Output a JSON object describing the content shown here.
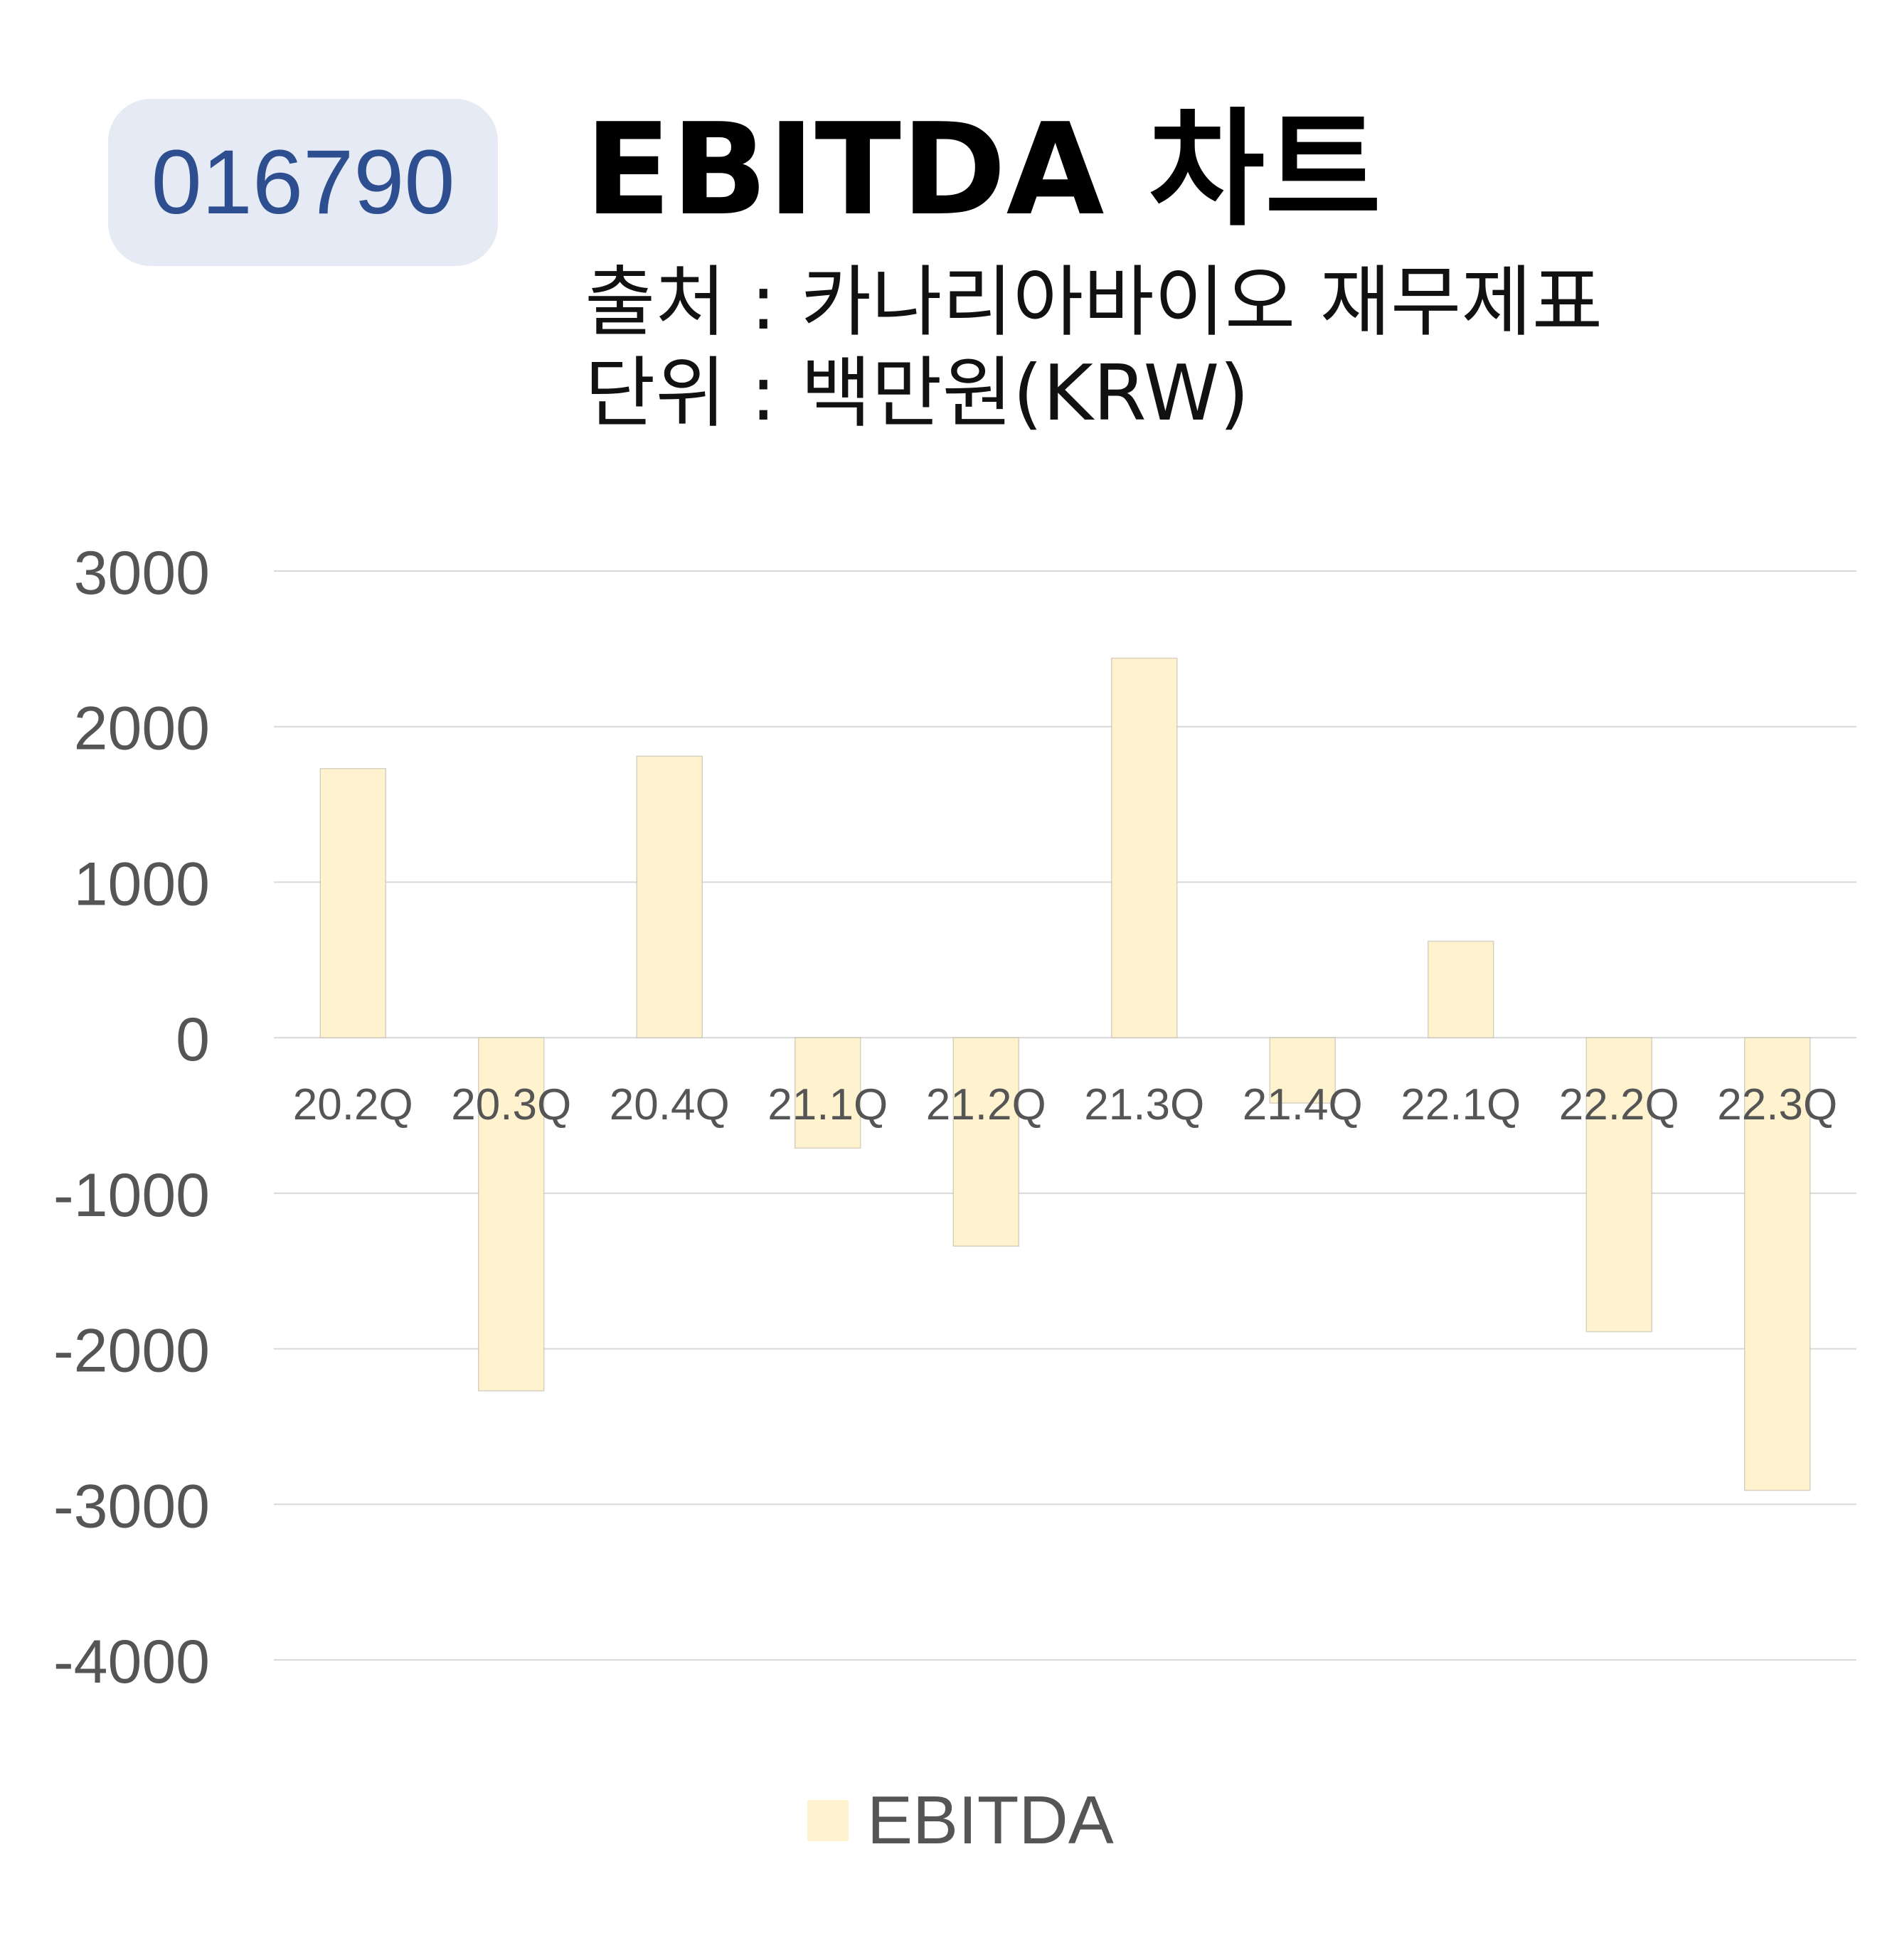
{
  "header": {
    "stock_code": "016790",
    "title": "EBITDA 차트",
    "source": "출처 : 카나리아바이오 재무제표",
    "unit": "단위 : 백만원(KRW)"
  },
  "colors": {
    "bar": "#fff2cf",
    "badge_bg": "#e5eaf5",
    "badge_text": "#2d4f8f",
    "grid": "#d9d9d9",
    "tick_text": "#555555"
  },
  "chart_data": {
    "type": "bar",
    "categories": [
      "20.2Q",
      "20.3Q",
      "20.4Q",
      "21.1Q",
      "21.2Q",
      "21.3Q",
      "21.4Q",
      "22.1Q",
      "22.2Q",
      "22.3Q"
    ],
    "series": [
      {
        "name": "EBITDA",
        "values": [
          1730,
          -2270,
          1810,
          -710,
          -1340,
          2440,
          -420,
          620,
          -1890,
          -2910
        ]
      }
    ],
    "ylim": [
      -4000,
      3000
    ],
    "yticks": [
      "3000",
      "2000",
      "1000",
      "0",
      "-1000",
      "-2000",
      "-3000",
      "-4000"
    ],
    "grid": true,
    "legend_position": "bottom"
  }
}
